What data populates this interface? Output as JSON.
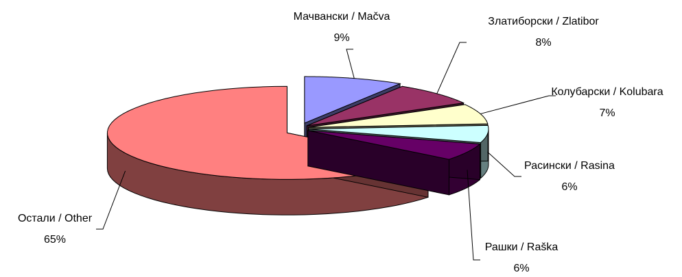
{
  "chart_data": {
    "type": "pie",
    "categories": [
      "Мачвански / Mačva",
      "Златиборски / Zlatibor",
      "Колубарски / Kolubara",
      "Расински / Rasina",
      "Рашки / Raška",
      "Остали / Other"
    ],
    "values": [
      9,
      8,
      7,
      6,
      6,
      65
    ],
    "value_labels": [
      "9%",
      "8%",
      "7%",
      "6%",
      "6%",
      "65%"
    ],
    "colors": [
      "#9999ff",
      "#993366",
      "#ffffcc",
      "#ccffff",
      "#660066",
      "#ff8080"
    ]
  }
}
